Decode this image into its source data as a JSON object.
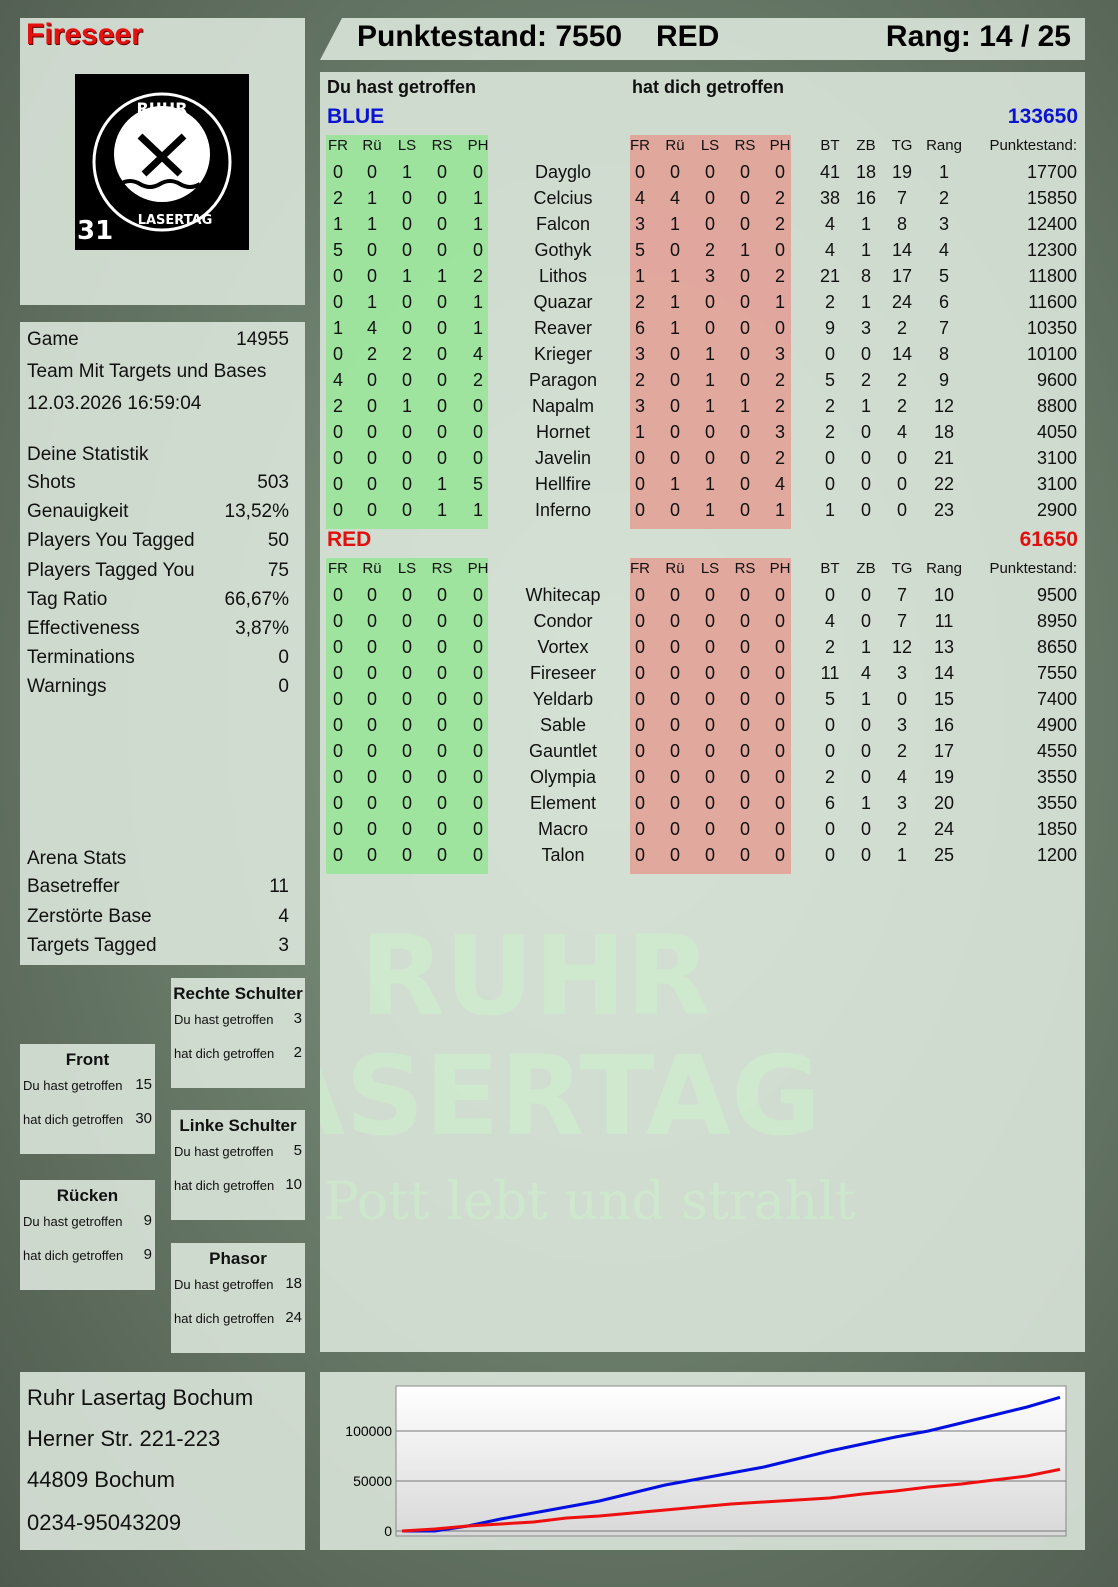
{
  "player": {
    "name": "Fireseer",
    "badge_number": "31",
    "logo_text": "RUHR LASERTAG"
  },
  "header": {
    "score": "Punktestand: 7550",
    "team": "RED",
    "rank": "Rang: 14 / 25"
  },
  "game": {
    "label": "Game",
    "id": "14955",
    "mode": "Team Mit Targets und Bases",
    "datetime": "12.03.2026 16:59:04"
  },
  "stats": {
    "title": "Deine Statistik",
    "items": [
      {
        "label": "Shots",
        "value": "503"
      },
      {
        "label": "Genauigkeit",
        "value": "13,52%"
      },
      {
        "label": "Players You Tagged",
        "value": "50"
      },
      {
        "label": "Players Tagged You",
        "value": "75"
      },
      {
        "label": "Tag Ratio",
        "value": "66,67%"
      },
      {
        "label": "Effectiveness",
        "value": "3,87%"
      },
      {
        "label": "Terminations",
        "value": "0"
      },
      {
        "label": "Warnings",
        "value": "0"
      }
    ]
  },
  "arena": {
    "title": "Arena Stats",
    "items": [
      {
        "label": "Basetreffer",
        "value": "11"
      },
      {
        "label": "Zerstörte Base",
        "value": "4"
      },
      {
        "label": "Targets Tagged",
        "value": "3"
      }
    ]
  },
  "zones": {
    "you_hit": "Du hast getroffen",
    "hit_you": "hat dich getroffen",
    "items": [
      {
        "name": "Rechte Schulter",
        "you_hit": "3",
        "hit_you": "2"
      },
      {
        "name": "Front",
        "you_hit": "15",
        "hit_you": "30"
      },
      {
        "name": "Linke Schulter",
        "you_hit": "5",
        "hit_you": "10"
      },
      {
        "name": "Rücken",
        "you_hit": "9",
        "hit_you": "9"
      },
      {
        "name": "Phasor",
        "you_hit": "18",
        "hit_you": "24"
      }
    ]
  },
  "address": {
    "line1": "Ruhr Lasertag Bochum",
    "line2": "Herner Str. 221-223",
    "line3": "44809 Bochum",
    "phone": "0234-95043209"
  },
  "table": {
    "you_hit_title": "Du hast getroffen",
    "hit_you_title": "hat dich getroffen",
    "columns": [
      "FR",
      "Rü",
      "LS",
      "RS",
      "PH"
    ],
    "extra_columns": [
      "BT",
      "ZB",
      "TG",
      "Rang",
      "Punktestand:"
    ],
    "teams": [
      {
        "name": "BLUE",
        "score": "133650",
        "color": "#0a14d0",
        "players": [
          [
            "Dayglo",
            [
              0,
              0,
              1,
              0,
              0
            ],
            [
              0,
              0,
              0,
              0,
              0
            ],
            [
              41,
              18,
              19,
              1
            ],
            17700
          ],
          [
            "Celcius",
            [
              2,
              1,
              0,
              0,
              1
            ],
            [
              4,
              4,
              0,
              0,
              2
            ],
            [
              38,
              16,
              7,
              2
            ],
            15850
          ],
          [
            "Falcon",
            [
              1,
              1,
              0,
              0,
              1
            ],
            [
              3,
              1,
              0,
              0,
              2
            ],
            [
              4,
              1,
              8,
              3
            ],
            12400
          ],
          [
            "Gothyk",
            [
              5,
              0,
              0,
              0,
              0
            ],
            [
              5,
              0,
              2,
              1,
              0
            ],
            [
              4,
              1,
              14,
              4
            ],
            12300
          ],
          [
            "Lithos",
            [
              0,
              0,
              1,
              1,
              2
            ],
            [
              1,
              1,
              3,
              0,
              2
            ],
            [
              21,
              8,
              17,
              5
            ],
            11800
          ],
          [
            "Quazar",
            [
              0,
              1,
              0,
              0,
              1
            ],
            [
              2,
              1,
              0,
              0,
              1
            ],
            [
              2,
              1,
              24,
              6
            ],
            11600
          ],
          [
            "Reaver",
            [
              1,
              4,
              0,
              0,
              1
            ],
            [
              6,
              1,
              0,
              0,
              0
            ],
            [
              9,
              3,
              2,
              7
            ],
            10350
          ],
          [
            "Krieger",
            [
              0,
              2,
              2,
              0,
              4
            ],
            [
              3,
              0,
              1,
              0,
              3
            ],
            [
              0,
              0,
              14,
              8
            ],
            10100
          ],
          [
            "Paragon",
            [
              4,
              0,
              0,
              0,
              2
            ],
            [
              2,
              0,
              1,
              0,
              2
            ],
            [
              5,
              2,
              2,
              9
            ],
            9600
          ],
          [
            "Napalm",
            [
              2,
              0,
              1,
              0,
              0
            ],
            [
              3,
              0,
              1,
              1,
              2
            ],
            [
              2,
              1,
              2,
              12
            ],
            8800
          ],
          [
            "Hornet",
            [
              0,
              0,
              0,
              0,
              0
            ],
            [
              1,
              0,
              0,
              0,
              3
            ],
            [
              2,
              0,
              4,
              18
            ],
            4050
          ],
          [
            "Javelin",
            [
              0,
              0,
              0,
              0,
              0
            ],
            [
              0,
              0,
              0,
              0,
              2
            ],
            [
              0,
              0,
              0,
              21
            ],
            3100
          ],
          [
            "Hellfire",
            [
              0,
              0,
              0,
              1,
              5
            ],
            [
              0,
              1,
              1,
              0,
              4
            ],
            [
              0,
              0,
              0,
              22
            ],
            3100
          ],
          [
            "Inferno",
            [
              0,
              0,
              0,
              1,
              1
            ],
            [
              0,
              0,
              1,
              0,
              1
            ],
            [
              1,
              0,
              0,
              23
            ],
            2900
          ]
        ]
      },
      {
        "name": "RED",
        "score": "61650",
        "color": "#e01010",
        "players": [
          [
            "Whitecap",
            [
              0,
              0,
              0,
              0,
              0
            ],
            [
              0,
              0,
              0,
              0,
              0
            ],
            [
              0,
              0,
              7,
              10
            ],
            9500
          ],
          [
            "Condor",
            [
              0,
              0,
              0,
              0,
              0
            ],
            [
              0,
              0,
              0,
              0,
              0
            ],
            [
              4,
              0,
              7,
              11
            ],
            8950
          ],
          [
            "Vortex",
            [
              0,
              0,
              0,
              0,
              0
            ],
            [
              0,
              0,
              0,
              0,
              0
            ],
            [
              2,
              1,
              12,
              13
            ],
            8650
          ],
          [
            "Fireseer",
            [
              0,
              0,
              0,
              0,
              0
            ],
            [
              0,
              0,
              0,
              0,
              0
            ],
            [
              11,
              4,
              3,
              14
            ],
            7550
          ],
          [
            "Yeldarb",
            [
              0,
              0,
              0,
              0,
              0
            ],
            [
              0,
              0,
              0,
              0,
              0
            ],
            [
              5,
              1,
              0,
              15
            ],
            7400
          ],
          [
            "Sable",
            [
              0,
              0,
              0,
              0,
              0
            ],
            [
              0,
              0,
              0,
              0,
              0
            ],
            [
              0,
              0,
              3,
              16
            ],
            4900
          ],
          [
            "Gauntlet",
            [
              0,
              0,
              0,
              0,
              0
            ],
            [
              0,
              0,
              0,
              0,
              0
            ],
            [
              0,
              0,
              2,
              17
            ],
            4550
          ],
          [
            "Olympia",
            [
              0,
              0,
              0,
              0,
              0
            ],
            [
              0,
              0,
              0,
              0,
              0
            ],
            [
              2,
              0,
              4,
              19
            ],
            3550
          ],
          [
            "Element",
            [
              0,
              0,
              0,
              0,
              0
            ],
            [
              0,
              0,
              0,
              0,
              0
            ],
            [
              6,
              1,
              3,
              20
            ],
            3550
          ],
          [
            "Macro",
            [
              0,
              0,
              0,
              0,
              0
            ],
            [
              0,
              0,
              0,
              0,
              0
            ],
            [
              0,
              0,
              2,
              24
            ],
            1850
          ],
          [
            "Talon",
            [
              0,
              0,
              0,
              0,
              0
            ],
            [
              0,
              0,
              0,
              0,
              0
            ],
            [
              0,
              0,
              1,
              25
            ],
            1200
          ]
        ]
      }
    ]
  },
  "watermark": {
    "line1": "RUHR",
    "line2": "LASERTAG",
    "line3": "Der Pott lebt und strahlt"
  },
  "chart_data": {
    "type": "line",
    "yticks": [
      "0",
      "50000",
      "100000"
    ],
    "ylim": [
      0,
      145000
    ],
    "grid": true,
    "series": [
      {
        "color": "#0010e0",
        "values": [
          0,
          0,
          5000,
          12000,
          18000,
          24000,
          30000,
          38000,
          46000,
          52000,
          58000,
          64000,
          72000,
          80000,
          87000,
          94000,
          100000,
          108000,
          116000,
          124000,
          133650
        ]
      },
      {
        "color": "#ee1010",
        "values": [
          0,
          2000,
          5000,
          7000,
          9000,
          13000,
          15000,
          18000,
          21000,
          24000,
          27000,
          29000,
          31000,
          33000,
          37000,
          40000,
          44000,
          47000,
          51000,
          55000,
          61650
        ]
      }
    ]
  }
}
